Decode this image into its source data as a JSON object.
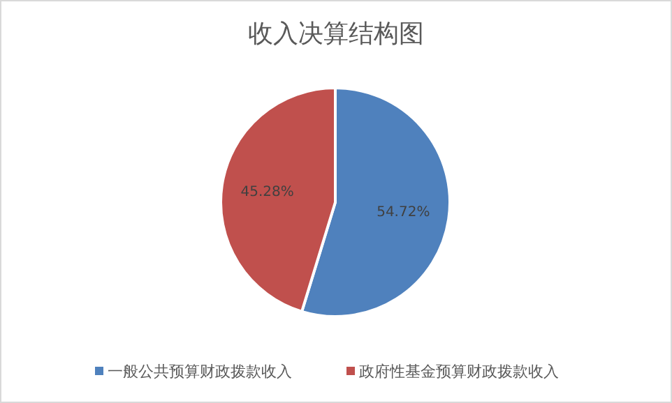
{
  "chart_data": {
    "type": "pie",
    "title": "收入决算结构图",
    "categories": [
      "一般公共预算财政拨款收入",
      "政府性基金预算财政拨款收入"
    ],
    "values": [
      54.72,
      45.28
    ],
    "colors": [
      "#4f81bd",
      "#c0504d"
    ],
    "value_labels": [
      "54.72%",
      "45.28%"
    ],
    "legend": "bottom"
  }
}
